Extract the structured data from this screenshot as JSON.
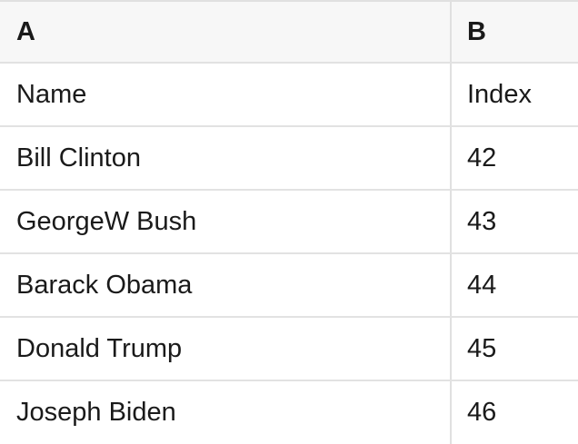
{
  "app": {
    "type": "spreadsheet-table"
  },
  "colors": {
    "header_background": "#f7f7f7",
    "grid_border": "#e0e0e0",
    "row_border": "#e2e2e2",
    "text": "#1a1a1a",
    "cell_background": "#ffffff"
  },
  "table": {
    "columns": [
      {
        "id": "A",
        "label": "A"
      },
      {
        "id": "B",
        "label": "B"
      }
    ],
    "rows": [
      {
        "a": "Name",
        "b": "Index"
      },
      {
        "a": "Bill Clinton",
        "b": "42"
      },
      {
        "a": "GeorgeW Bush",
        "b": "43"
      },
      {
        "a": "Barack Obama",
        "b": "44"
      },
      {
        "a": "Donald Trump",
        "b": "45"
      },
      {
        "a": "Joseph Biden",
        "b": "46"
      }
    ]
  }
}
